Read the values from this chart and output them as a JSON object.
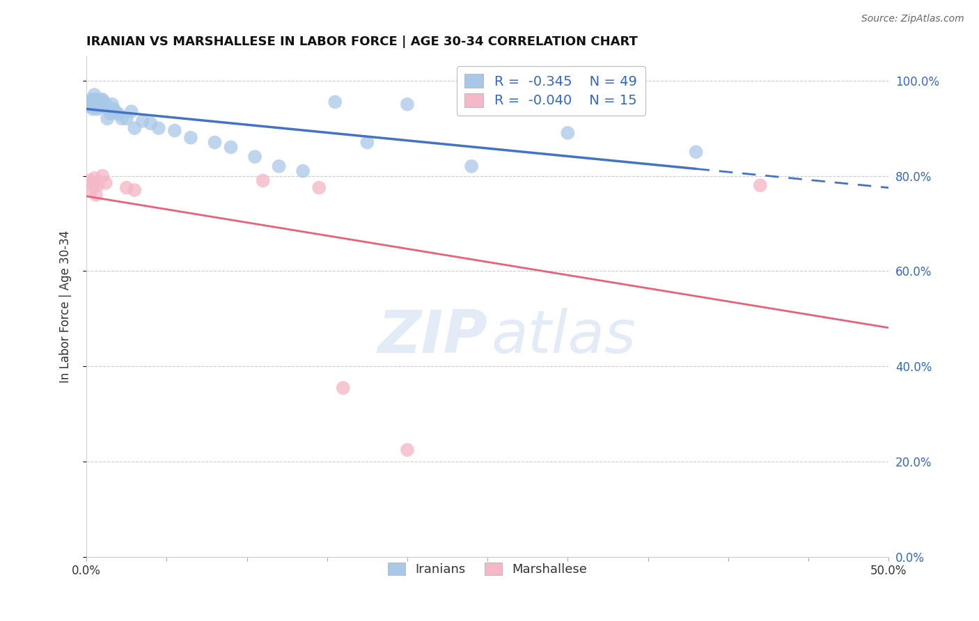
{
  "title": "IRANIAN VS MARSHALLESE IN LABOR FORCE | AGE 30-34 CORRELATION CHART",
  "source": "Source: ZipAtlas.com",
  "ylabel": "In Labor Force | Age 30-34",
  "xlim": [
    0.0,
    0.5
  ],
  "ylim": [
    0.0,
    1.05
  ],
  "xticks": [
    0.0,
    0.05,
    0.1,
    0.15,
    0.2,
    0.25,
    0.3,
    0.35,
    0.4,
    0.45,
    0.5
  ],
  "xtick_labels": [
    "0.0%",
    "",
    "",
    "",
    "",
    "",
    "",
    "",
    "",
    "",
    "50.0%"
  ],
  "yticks": [
    0.0,
    0.2,
    0.4,
    0.6,
    0.8,
    1.0
  ],
  "right_ytick_labels": [
    "0.0%",
    "20.0%",
    "40.0%",
    "60.0%",
    "80.0%",
    "100.0%"
  ],
  "blue_color": "#a8c8e8",
  "pink_color": "#f4b8c8",
  "blue_line_color": "#4472c4",
  "pink_line_color": "#e8607a",
  "R_blue": -0.345,
  "N_blue": 49,
  "R_pink": -0.04,
  "N_pink": 15,
  "legend_text_color": "#3366cc",
  "watermark_zip": "ZIP",
  "watermark_atlas": "atlas",
  "iranian_x": [
    0.002,
    0.003,
    0.003,
    0.004,
    0.004,
    0.005,
    0.005,
    0.005,
    0.006,
    0.006,
    0.006,
    0.007,
    0.007,
    0.007,
    0.008,
    0.008,
    0.009,
    0.009,
    0.01,
    0.01,
    0.011,
    0.012,
    0.013,
    0.014,
    0.015,
    0.016,
    0.017,
    0.018,
    0.02,
    0.022,
    0.025,
    0.028,
    0.03,
    0.035,
    0.04,
    0.045,
    0.055,
    0.065,
    0.08,
    0.09,
    0.105,
    0.12,
    0.135,
    0.155,
    0.175,
    0.2,
    0.24,
    0.3,
    0.38
  ],
  "iranian_y": [
    0.955,
    0.945,
    0.96,
    0.94,
    0.955,
    0.96,
    0.95,
    0.97,
    0.945,
    0.955,
    0.96,
    0.95,
    0.94,
    0.955,
    0.95,
    0.945,
    0.955,
    0.96,
    0.945,
    0.96,
    0.955,
    0.95,
    0.92,
    0.94,
    0.93,
    0.95,
    0.94,
    0.935,
    0.93,
    0.92,
    0.92,
    0.935,
    0.9,
    0.915,
    0.91,
    0.9,
    0.895,
    0.88,
    0.87,
    0.86,
    0.84,
    0.82,
    0.81,
    0.955,
    0.87,
    0.95,
    0.82,
    0.89,
    0.85
  ],
  "marshallese_x": [
    0.002,
    0.003,
    0.004,
    0.005,
    0.006,
    0.007,
    0.01,
    0.012,
    0.025,
    0.03,
    0.11,
    0.145,
    0.16,
    0.2,
    0.42
  ],
  "marshallese_y": [
    0.79,
    0.77,
    0.78,
    0.795,
    0.76,
    0.78,
    0.8,
    0.785,
    0.775,
    0.77,
    0.79,
    0.775,
    0.355,
    0.225,
    0.78
  ]
}
